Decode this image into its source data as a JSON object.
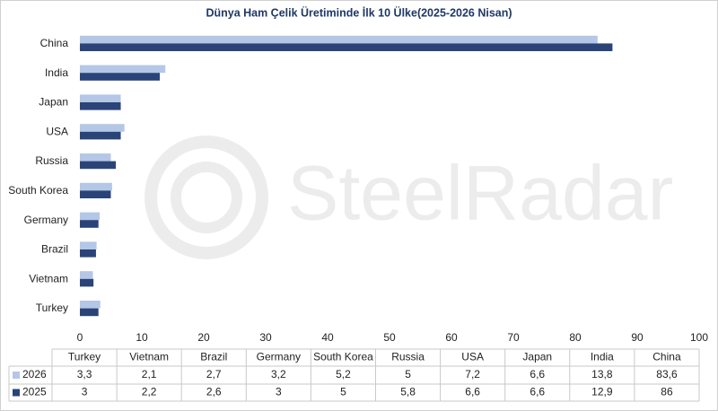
{
  "chart_data": {
    "type": "bar",
    "orientation": "horizontal",
    "title": "Dünya Ham Çelik Üretiminde İlk 10 Ülke(2025-2026 Nisan)",
    "watermark": "SteelRadar",
    "categories": [
      "Turkey",
      "Vietnam",
      "Brazil",
      "Germany",
      "South Korea",
      "Russia",
      "USA",
      "Japan",
      "India",
      "China"
    ],
    "series": [
      {
        "name": "2026",
        "color": "#b4c7e7",
        "values": [
          3.3,
          2.1,
          2.7,
          3.2,
          5.2,
          5,
          7.2,
          6.6,
          13.8,
          83.6
        ],
        "value_labels": [
          "3,3",
          "2,1",
          "2,7",
          "3,2",
          "5,2",
          "5",
          "7,2",
          "6,6",
          "13,8",
          "83,6"
        ]
      },
      {
        "name": "2025",
        "color": "#2a4478",
        "values": [
          3,
          2.2,
          2.6,
          3,
          5,
          5.8,
          6.6,
          6.6,
          12.9,
          86
        ],
        "value_labels": [
          "3",
          "2,2",
          "2,6",
          "3",
          "5",
          "5,8",
          "6,6",
          "6,6",
          "12,9",
          "86"
        ]
      }
    ],
    "xlim": [
      0,
      100
    ],
    "xticks": [
      0,
      10,
      20,
      30,
      40,
      50,
      60,
      70,
      80,
      90,
      100
    ],
    "grid": false
  }
}
